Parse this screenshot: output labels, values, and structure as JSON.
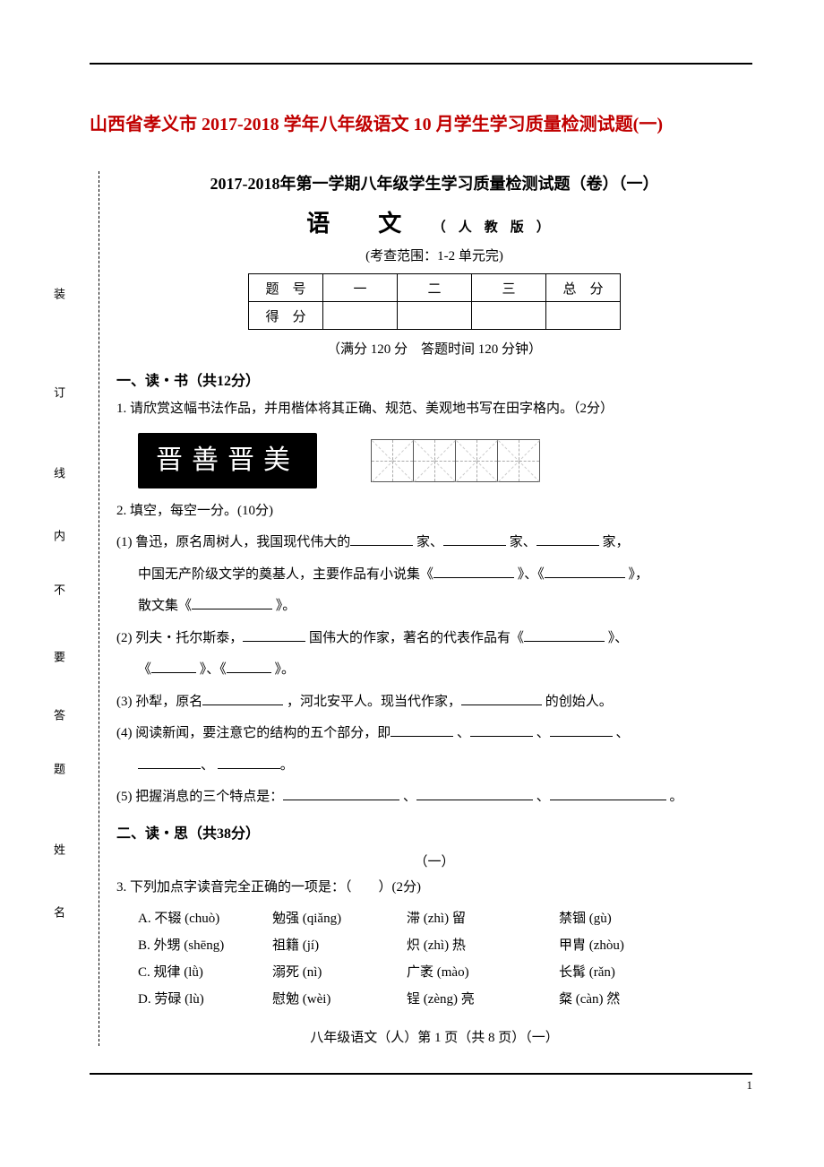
{
  "title_red": "山西省孝义市 2017-2018 学年八年级语文 10 月学生学习质量检测试题(一)",
  "exam_title": "2017-2018年第一学期八年级学生学习质量检测试题（卷）（一）",
  "subject": "语　文",
  "subject_note": "（人教版）",
  "scope": "(考查范围：1-2 单元完)",
  "score_table": {
    "row1": [
      "题　号",
      "一",
      "二",
      "三",
      "总　分"
    ],
    "row2": [
      "得　分",
      "",
      "",
      "",
      ""
    ]
  },
  "time_note": "（满分 120 分　答题时间 120 分钟）",
  "section1": "一、读・书（共12分）",
  "q1": "1. 请欣赏这幅书法作品，并用楷体将其正确、规范、美观地书写在田字格内。（2分）",
  "calligraphy": "晋善晋美",
  "q2": "2. 填空，每空一分。(10分)",
  "q2_1a": "(1) 鲁迅，原名周树人，我国现代伟大的",
  "q2_1b": "家、",
  "q2_1c": "家、",
  "q2_1d": "家，",
  "q2_1e": "中国无产阶级文学的奠基人，主要作品有小说集《",
  "q2_1f": "》、《",
  "q2_1g": "》，",
  "q2_1h": "散文集《",
  "q2_1i": "》。",
  "q2_2a": "(2) 列夫・托尔斯泰，",
  "q2_2b": "国伟大的作家，著名的代表作品有《",
  "q2_2c": "》、",
  "q2_2d": "《",
  "q2_2e": "》、《",
  "q2_2f": "》。",
  "q2_3a": "(3) 孙犁，原名",
  "q2_3b": "，河北安平人。现当代作家，",
  "q2_3c": "的创始人。",
  "q2_4a": "(4) 阅读新闻，要注意它的结构的五个部分，即",
  "q2_4b": "、",
  "q2_4c": "、",
  "q2_4d": "、",
  "q2_4e": "、",
  "q2_4f": "。",
  "q2_5a": "(5) 把握消息的三个特点是：",
  "q2_5b": "、",
  "q2_5c": "、",
  "q2_5d": "。",
  "section2": "二、读・思（共38分）",
  "part1": "（一）",
  "q3": "3. 下列加点字读音完全正确的一项是：（　　）(2分)",
  "opts": {
    "A": [
      "A. 不辍 (chuò)",
      "勉强 (qiǎng)",
      "滞 (zhì) 留",
      "禁锢 (gù)"
    ],
    "B": [
      "B. 外甥 (shēng)",
      "祖籍 (jí)",
      "炽 (zhì) 热",
      "甲胄 (zhòu)"
    ],
    "C": [
      "C. 规律 (lǜ)",
      "溺死 (nì)",
      "广袤 (mào)",
      "长髯 (rǎn)"
    ],
    "D": [
      "D. 劳碌 (lù)",
      "慰勉 (wèi)",
      "锃 (zèng) 亮",
      "粲 (càn) 然"
    ]
  },
  "footer": "八年级语文（人）第 1 页（共 8 页）（一）",
  "page_num": "1",
  "binding": [
    "装",
    "订",
    "线",
    "内",
    "不",
    "要",
    "答",
    "题",
    "姓",
    "名"
  ]
}
